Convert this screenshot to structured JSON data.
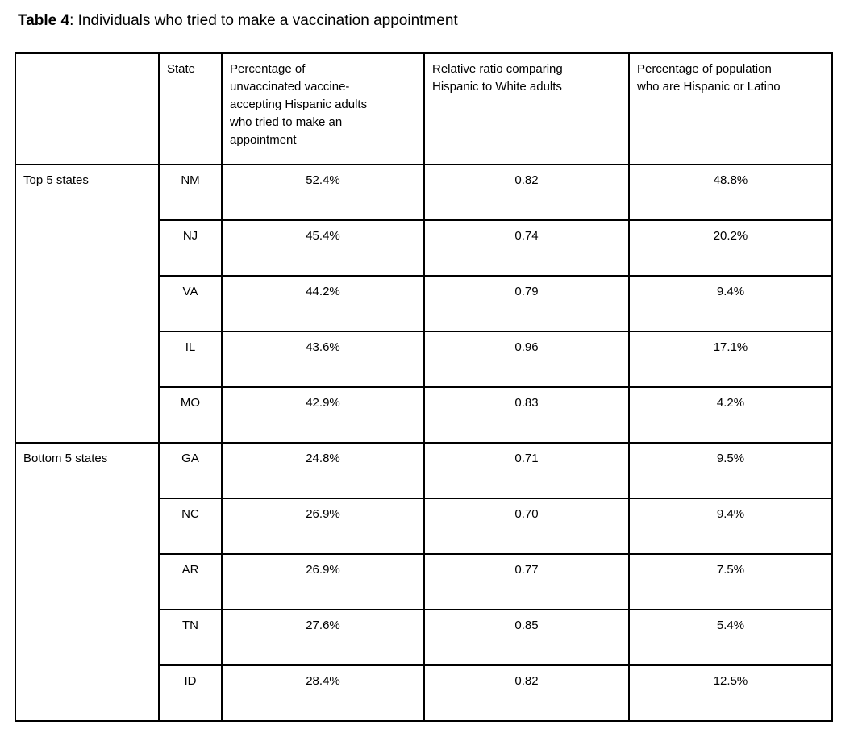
{
  "title": {
    "prefix": "Table 4",
    "rest": ": Individuals who tried to make a vaccination appointment"
  },
  "table": {
    "headers": {
      "group": "",
      "state": "State",
      "pct_tried": "Percentage of\nunvaccinated vaccine-\naccepting Hispanic adults\nwho tried to make an\nappointment",
      "relative_ratio": "Relative ratio comparing\nHispanic to White adults",
      "pct_population": "Percentage of population\nwho are Hispanic or Latino"
    },
    "groups": [
      {
        "label": "Top 5 states",
        "rows": [
          {
            "state": "NM",
            "pct_tried": "52.4%",
            "ratio": "0.82",
            "pct_pop": "48.8%"
          },
          {
            "state": "NJ",
            "pct_tried": "45.4%",
            "ratio": "0.74",
            "pct_pop": "20.2%"
          },
          {
            "state": "VA",
            "pct_tried": "44.2%",
            "ratio": "0.79",
            "pct_pop": "9.4%"
          },
          {
            "state": "IL",
            "pct_tried": "43.6%",
            "ratio": "0.96",
            "pct_pop": "17.1%"
          },
          {
            "state": "MO",
            "pct_tried": "42.9%",
            "ratio": "0.83",
            "pct_pop": "4.2%"
          }
        ]
      },
      {
        "label": "Bottom 5 states",
        "rows": [
          {
            "state": "GA",
            "pct_tried": "24.8%",
            "ratio": "0.71",
            "pct_pop": "9.5%"
          },
          {
            "state": "NC",
            "pct_tried": "26.9%",
            "ratio": "0.70",
            "pct_pop": "9.4%"
          },
          {
            "state": "AR",
            "pct_tried": "26.9%",
            "ratio": "0.77",
            "pct_pop": "7.5%"
          },
          {
            "state": "TN",
            "pct_tried": "27.6%",
            "ratio": "0.85",
            "pct_pop": "5.4%"
          },
          {
            "state": "ID",
            "pct_tried": "28.4%",
            "ratio": "0.82",
            "pct_pop": "12.5%"
          }
        ]
      }
    ]
  }
}
